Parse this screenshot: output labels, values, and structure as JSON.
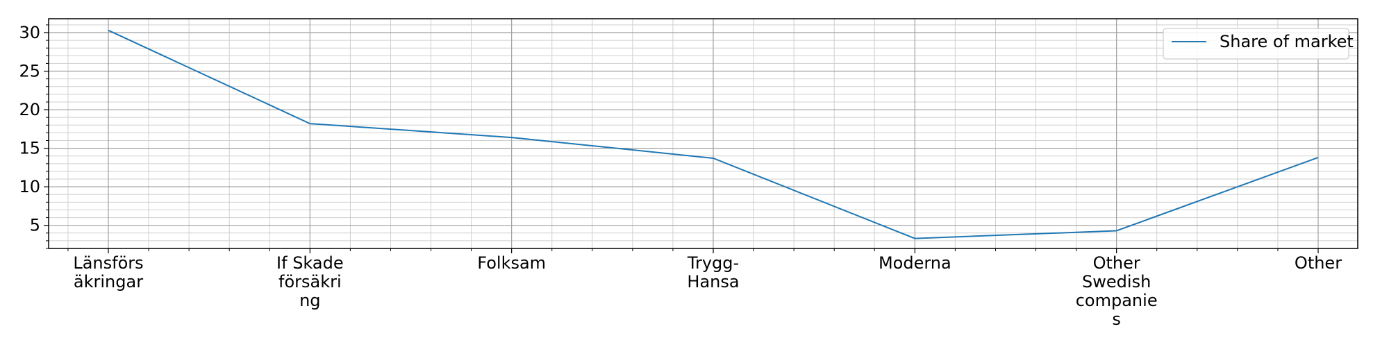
{
  "chart_data": {
    "type": "line",
    "title": "",
    "xlabel": "",
    "ylabel": "",
    "categories": [
      [
        "Länsförs",
        "äkringar"
      ],
      [
        "If Skade",
        "försäkri",
        "ng"
      ],
      [
        "Folksam"
      ],
      [
        "Trygg-",
        "Hansa"
      ],
      [
        "Moderna"
      ],
      [
        "Other",
        "Swedish",
        "companie",
        "s"
      ],
      [
        "Other"
      ]
    ],
    "series": [
      {
        "name": "Share of market",
        "color": "#1f77b4",
        "values": [
          30.3,
          18.2,
          16.4,
          13.7,
          3.3,
          4.3,
          13.8
        ]
      }
    ],
    "ylim": [
      2.0,
      31.8
    ],
    "yticks": [
      5,
      10,
      15,
      20,
      25,
      30
    ],
    "grid": true,
    "minor_grid": true,
    "legend": "top-right"
  }
}
